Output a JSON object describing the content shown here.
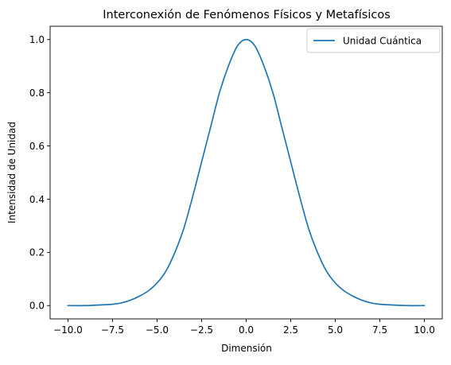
{
  "chart_data": {
    "type": "line",
    "title": "Interconexión de Fenómenos Físicos y Metafísicos",
    "xlabel": "Dimensión",
    "ylabel": "Intensidad de Unidad",
    "xlim": [
      -10.0,
      10.0
    ],
    "ylim": [
      0.0,
      1.0
    ],
    "x_ticks": [
      -10.0,
      -7.5,
      -5.0,
      -2.5,
      0.0,
      2.5,
      5.0,
      7.5,
      10.0
    ],
    "x_tick_labels": [
      "−10.0",
      "−7.5",
      "−5.0",
      "−2.5",
      "0.0",
      "2.5",
      "5.0",
      "7.5",
      "10.0"
    ],
    "y_ticks": [
      0.0,
      0.2,
      0.4,
      0.6,
      0.8,
      1.0
    ],
    "y_tick_labels": [
      "0.0",
      "0.2",
      "0.4",
      "0.6",
      "0.8",
      "1.0"
    ],
    "grid": false,
    "legend_position": "top-right",
    "series": [
      {
        "name": "Unidad Cuántica",
        "color": "#1f77b4",
        "x": [
          -10,
          -9,
          -8,
          -7.5,
          -7,
          -6.5,
          -6,
          -5.5,
          -5,
          -4.5,
          -4,
          -3.5,
          -3,
          -2.5,
          -2,
          -1.5,
          -1,
          -0.5,
          0,
          0.5,
          1,
          1.5,
          2,
          2.5,
          3,
          3.5,
          4,
          4.5,
          5,
          5.5,
          6,
          6.5,
          7,
          7.5,
          8,
          9,
          10
        ],
        "y": [
          0.0,
          0.0,
          0.003,
          0.005,
          0.01,
          0.02,
          0.035,
          0.055,
          0.085,
          0.13,
          0.2,
          0.29,
          0.41,
          0.54,
          0.67,
          0.8,
          0.9,
          0.975,
          1.0,
          0.975,
          0.9,
          0.8,
          0.67,
          0.54,
          0.41,
          0.29,
          0.2,
          0.13,
          0.085,
          0.055,
          0.035,
          0.02,
          0.01,
          0.005,
          0.003,
          0.0,
          0.0
        ]
      }
    ]
  }
}
